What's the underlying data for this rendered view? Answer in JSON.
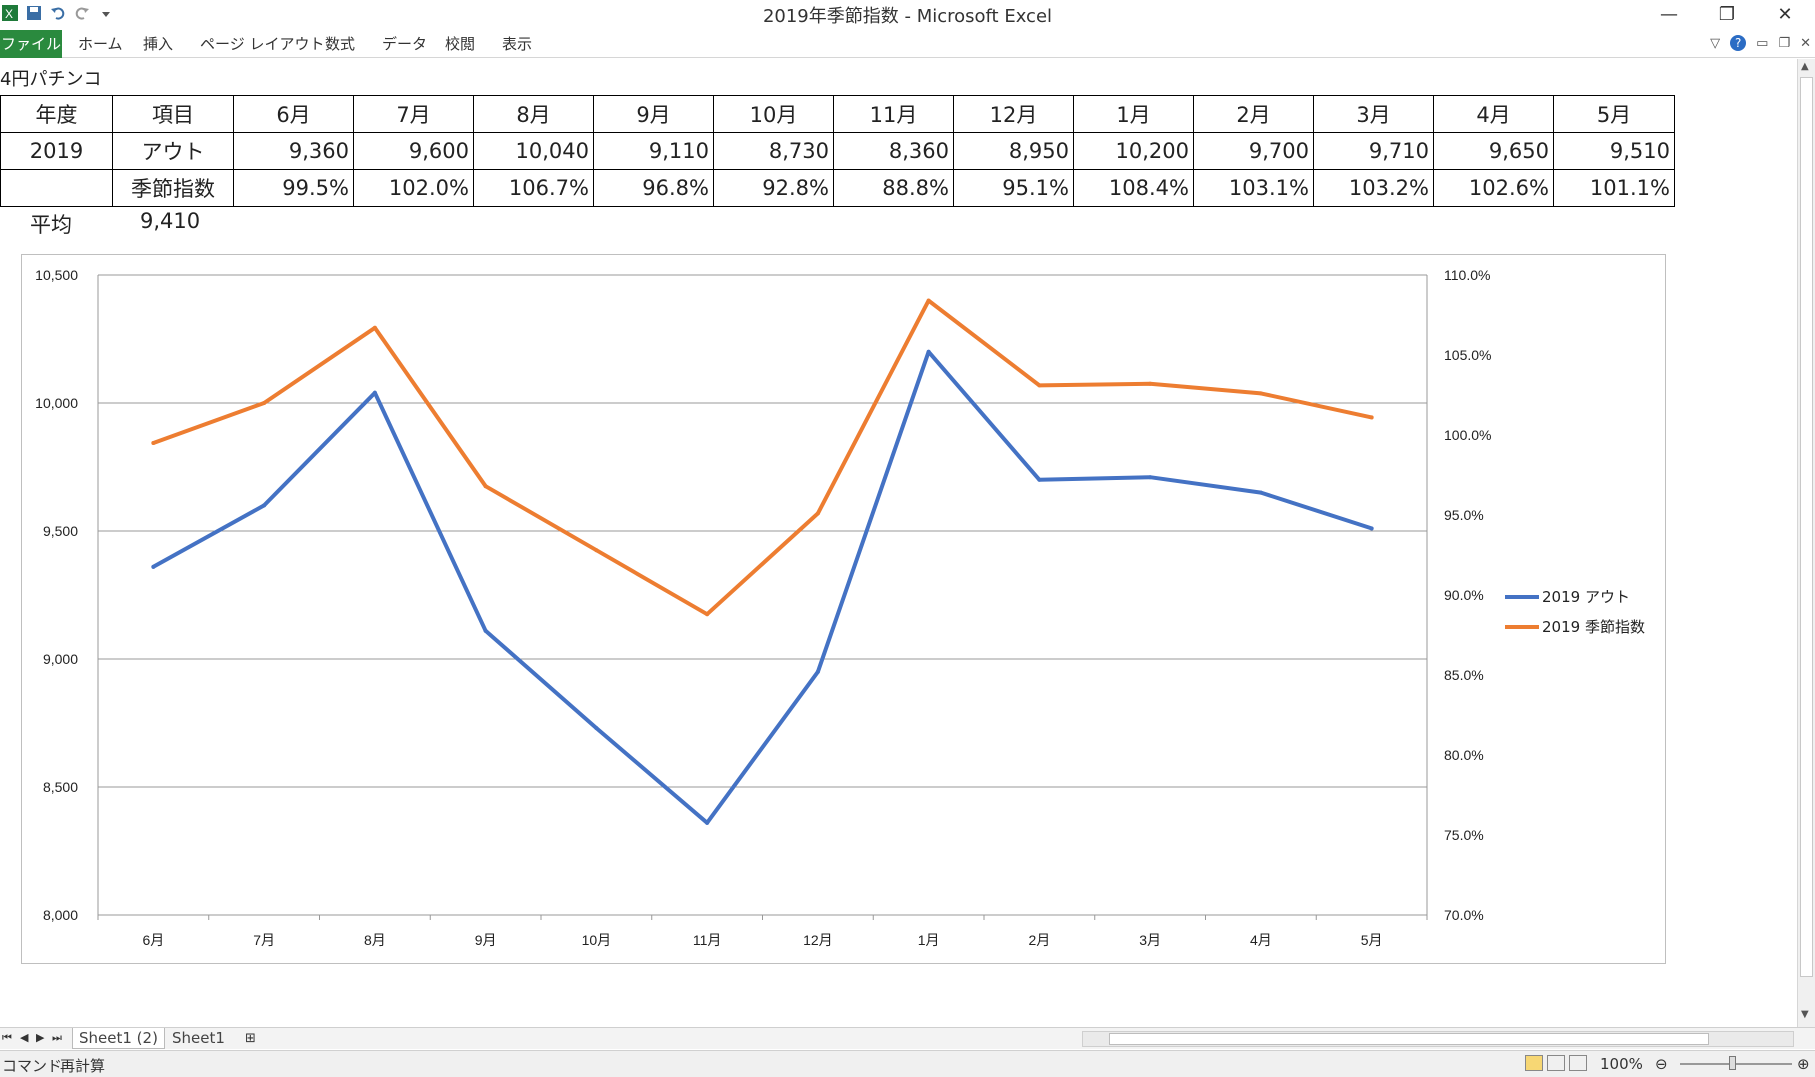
{
  "window": {
    "title": "2019年季節指数 - Microsoft Excel",
    "minimize": "—",
    "restore": "❐",
    "close": "✕"
  },
  "ribbon": {
    "file": "ファイル",
    "tabs": [
      "ホーム",
      "挿入",
      "ページ レイアウト",
      "数式",
      "データ",
      "校閲",
      "表示"
    ]
  },
  "sheet": {
    "caption": "4円パチンコ",
    "header": [
      "年度",
      "項目",
      "6月",
      "7月",
      "8月",
      "9月",
      "10月",
      "11月",
      "12月",
      "1月",
      "2月",
      "3月",
      "4月",
      "5月"
    ],
    "row_out": {
      "year": "2019",
      "item": "アウト",
      "values": [
        "9,360",
        "9,600",
        "10,040",
        "9,110",
        "8,730",
        "8,360",
        "8,950",
        "10,200",
        "9,700",
        "9,710",
        "9,650",
        "9,510"
      ]
    },
    "row_index": {
      "year": "",
      "item": "季節指数",
      "values": [
        "99.5%",
        "102.0%",
        "106.7%",
        "96.8%",
        "92.8%",
        "88.8%",
        "95.1%",
        "108.4%",
        "103.1%",
        "103.2%",
        "102.6%",
        "101.1%"
      ]
    },
    "average_label": "平均",
    "average_value": "9,410"
  },
  "chart_data": {
    "type": "line",
    "categories": [
      "6月",
      "7月",
      "8月",
      "9月",
      "10月",
      "11月",
      "12月",
      "1月",
      "2月",
      "3月",
      "4月",
      "5月"
    ],
    "series": [
      {
        "name": "2019 アウト",
        "axis": "left",
        "color": "#4472c4",
        "values": [
          9360,
          9600,
          10040,
          9110,
          8730,
          8360,
          8950,
          10200,
          9700,
          9710,
          9650,
          9510
        ]
      },
      {
        "name": "2019 季節指数",
        "axis": "right",
        "color": "#ed7d31",
        "values": [
          99.5,
          102.0,
          106.7,
          96.8,
          92.8,
          88.8,
          95.1,
          108.4,
          103.1,
          103.2,
          102.6,
          101.1
        ]
      }
    ],
    "ylim_left": [
      8000,
      10500
    ],
    "ylim_right": [
      70,
      110
    ],
    "left_ticks": [
      "8,000",
      "8,500",
      "9,000",
      "9,500",
      "10,000",
      "10,500"
    ],
    "right_ticks": [
      "70.0%",
      "75.0%",
      "80.0%",
      "85.0%",
      "90.0%",
      "95.0%",
      "100.0%",
      "105.0%",
      "110.0%"
    ],
    "legend_position": "right",
    "grid": true
  },
  "sheet_tabs": [
    "Sheet1 (2)",
    "Sheet1"
  ],
  "status": {
    "mode": "コマンド",
    "recalc": "再計算",
    "zoom": "100%"
  }
}
